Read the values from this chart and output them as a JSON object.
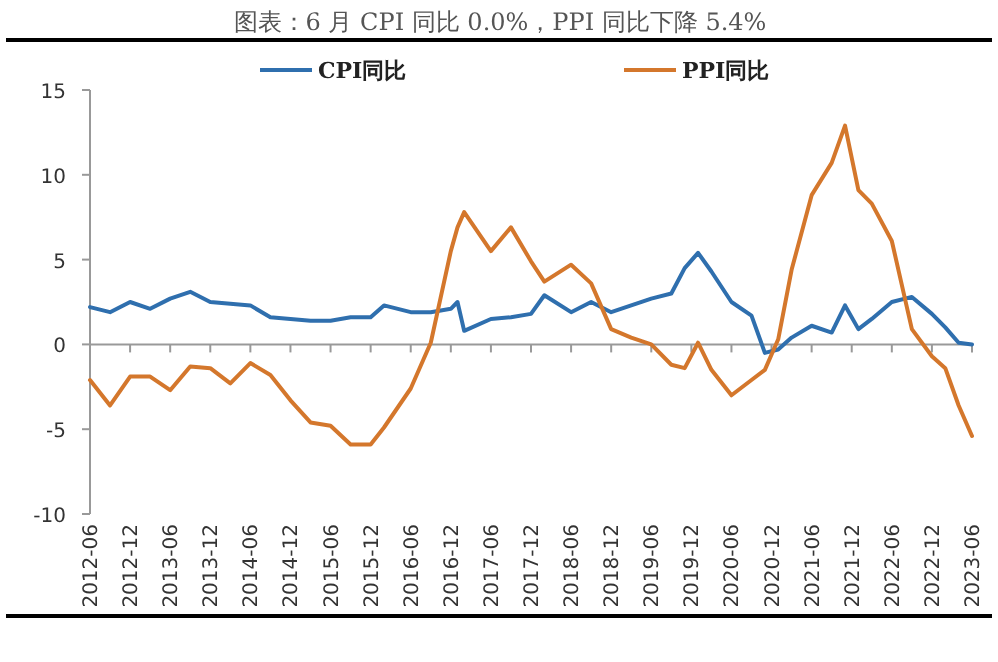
{
  "chart_data": {
    "type": "line",
    "title": "图表：6 月 CPI 同比 0.0%，PPI 同比下降 5.4%",
    "x": [
      "2012-06",
      "2012-09",
      "2012-12",
      "2013-03",
      "2013-06",
      "2013-09",
      "2013-12",
      "2014-03",
      "2014-06",
      "2014-09",
      "2014-12",
      "2015-03",
      "2015-06",
      "2015-09",
      "2015-12",
      "2016-02",
      "2016-06",
      "2016-09",
      "2016-12",
      "2017-01",
      "2017-02",
      "2017-06",
      "2017-09",
      "2017-12",
      "2018-02",
      "2018-06",
      "2018-09",
      "2018-12",
      "2019-03",
      "2019-06",
      "2019-09",
      "2019-11",
      "2020-01",
      "2020-03",
      "2020-06",
      "2020-09",
      "2020-11",
      "2021-01",
      "2021-03",
      "2021-06",
      "2021-09",
      "2021-11",
      "2022-01",
      "2022-03",
      "2022-06",
      "2022-09",
      "2022-12",
      "2023-02",
      "2023-04",
      "2023-06"
    ],
    "series": [
      {
        "name": "CPI同比",
        "color": "#2f6fae",
        "values": [
          2.2,
          1.9,
          2.5,
          2.1,
          2.7,
          3.1,
          2.5,
          2.4,
          2.3,
          1.6,
          1.5,
          1.4,
          1.4,
          1.6,
          1.6,
          2.3,
          1.9,
          1.9,
          2.1,
          2.5,
          0.8,
          1.5,
          1.6,
          1.8,
          2.9,
          1.9,
          2.5,
          1.9,
          2.3,
          2.7,
          3.0,
          4.5,
          5.4,
          4.3,
          2.5,
          1.7,
          -0.5,
          -0.3,
          0.4,
          1.1,
          0.7,
          2.3,
          0.9,
          1.5,
          2.5,
          2.8,
          1.8,
          1.0,
          0.1,
          0.0
        ]
      },
      {
        "name": "PPI同比",
        "color": "#d4772c",
        "values": [
          -2.1,
          -3.6,
          -1.9,
          -1.9,
          -2.7,
          -1.3,
          -1.4,
          -2.3,
          -1.1,
          -1.8,
          -3.3,
          -4.6,
          -4.8,
          -5.9,
          -5.9,
          -4.9,
          -2.6,
          0.1,
          5.5,
          6.9,
          7.8,
          5.5,
          6.9,
          4.9,
          3.7,
          4.7,
          3.6,
          0.9,
          0.4,
          0.0,
          -1.2,
          -1.4,
          0.1,
          -1.5,
          -3.0,
          -2.1,
          -1.5,
          0.3,
          4.4,
          8.8,
          10.7,
          12.9,
          9.1,
          8.3,
          6.1,
          0.9,
          -0.7,
          -1.4,
          -3.6,
          -5.4
        ]
      }
    ],
    "xlim": [
      "2012-06",
      "2023-06"
    ],
    "xticks": [
      "2012-06",
      "2012-12",
      "2013-06",
      "2013-12",
      "2014-06",
      "2014-12",
      "2015-06",
      "2015-12",
      "2016-06",
      "2016-12",
      "2017-06",
      "2017-12",
      "2018-06",
      "2018-12",
      "2019-06",
      "2019-12",
      "2020-06",
      "2020-12",
      "2021-06",
      "2021-12",
      "2022-06",
      "2022-12",
      "2023-06"
    ],
    "ylim": [
      -10,
      15
    ],
    "yticks": [
      -10,
      -5,
      0,
      5,
      10,
      15
    ],
    "legend": "top",
    "line_style": "solid"
  }
}
